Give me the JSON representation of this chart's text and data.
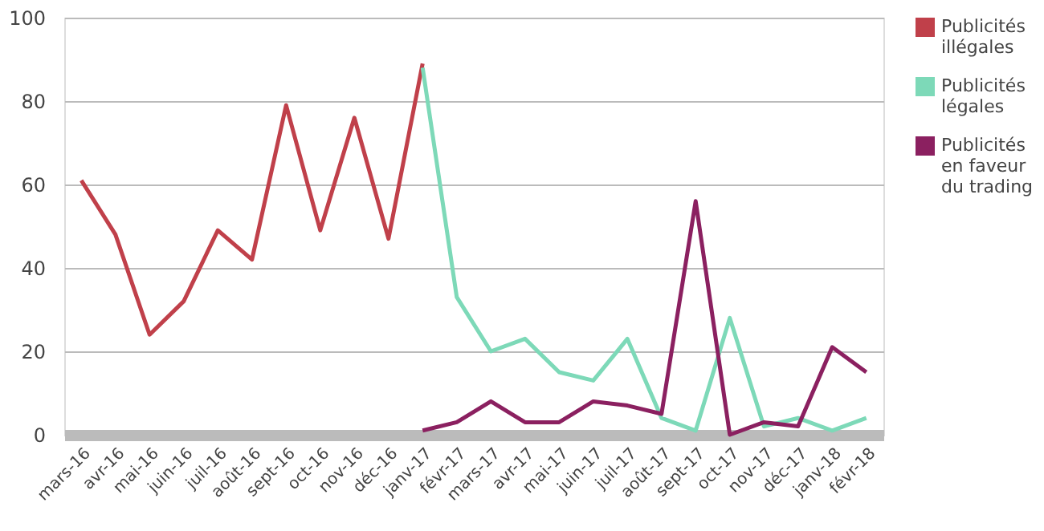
{
  "chart_data": {
    "type": "line",
    "categories": [
      "mars-16",
      "avr-16",
      "mai-16",
      "juin-16",
      "juil-16",
      "août-16",
      "sept-16",
      "oct-16",
      "nov-16",
      "déc-16",
      "janv-17",
      "févr-17",
      "mars-17",
      "avr-17",
      "mai-17",
      "juin-17",
      "juil-17",
      "août-17",
      "sept-17",
      "oct-17",
      "nov-17",
      "déc-17",
      "janv-18",
      "févr-18"
    ],
    "series": [
      {
        "name": "Publicités illégales",
        "color": "#c0404a",
        "values": [
          61,
          48,
          24,
          32,
          49,
          42,
          79,
          49,
          76,
          47,
          89,
          null,
          null,
          null,
          null,
          null,
          null,
          null,
          null,
          null,
          null,
          null,
          null,
          null
        ]
      },
      {
        "name": "Publicités légales",
        "color": "#7dd9b8",
        "values": [
          null,
          null,
          null,
          null,
          null,
          null,
          null,
          null,
          null,
          null,
          88,
          33,
          20,
          23,
          15,
          13,
          23,
          4,
          1,
          28,
          2,
          4,
          1,
          4
        ]
      },
      {
        "name": "Publicités en faveur du trading",
        "color": "#8b2060",
        "values": [
          null,
          null,
          null,
          null,
          null,
          null,
          null,
          null,
          null,
          null,
          1,
          3,
          8,
          3,
          3,
          8,
          7,
          5,
          56,
          0,
          3,
          2,
          21,
          15
        ]
      }
    ],
    "ylim": [
      0,
      100
    ],
    "yticks": [
      0,
      20,
      40,
      60,
      80,
      100
    ],
    "grid": "y",
    "legend": "right",
    "marker": "none",
    "line_style": "solid"
  }
}
